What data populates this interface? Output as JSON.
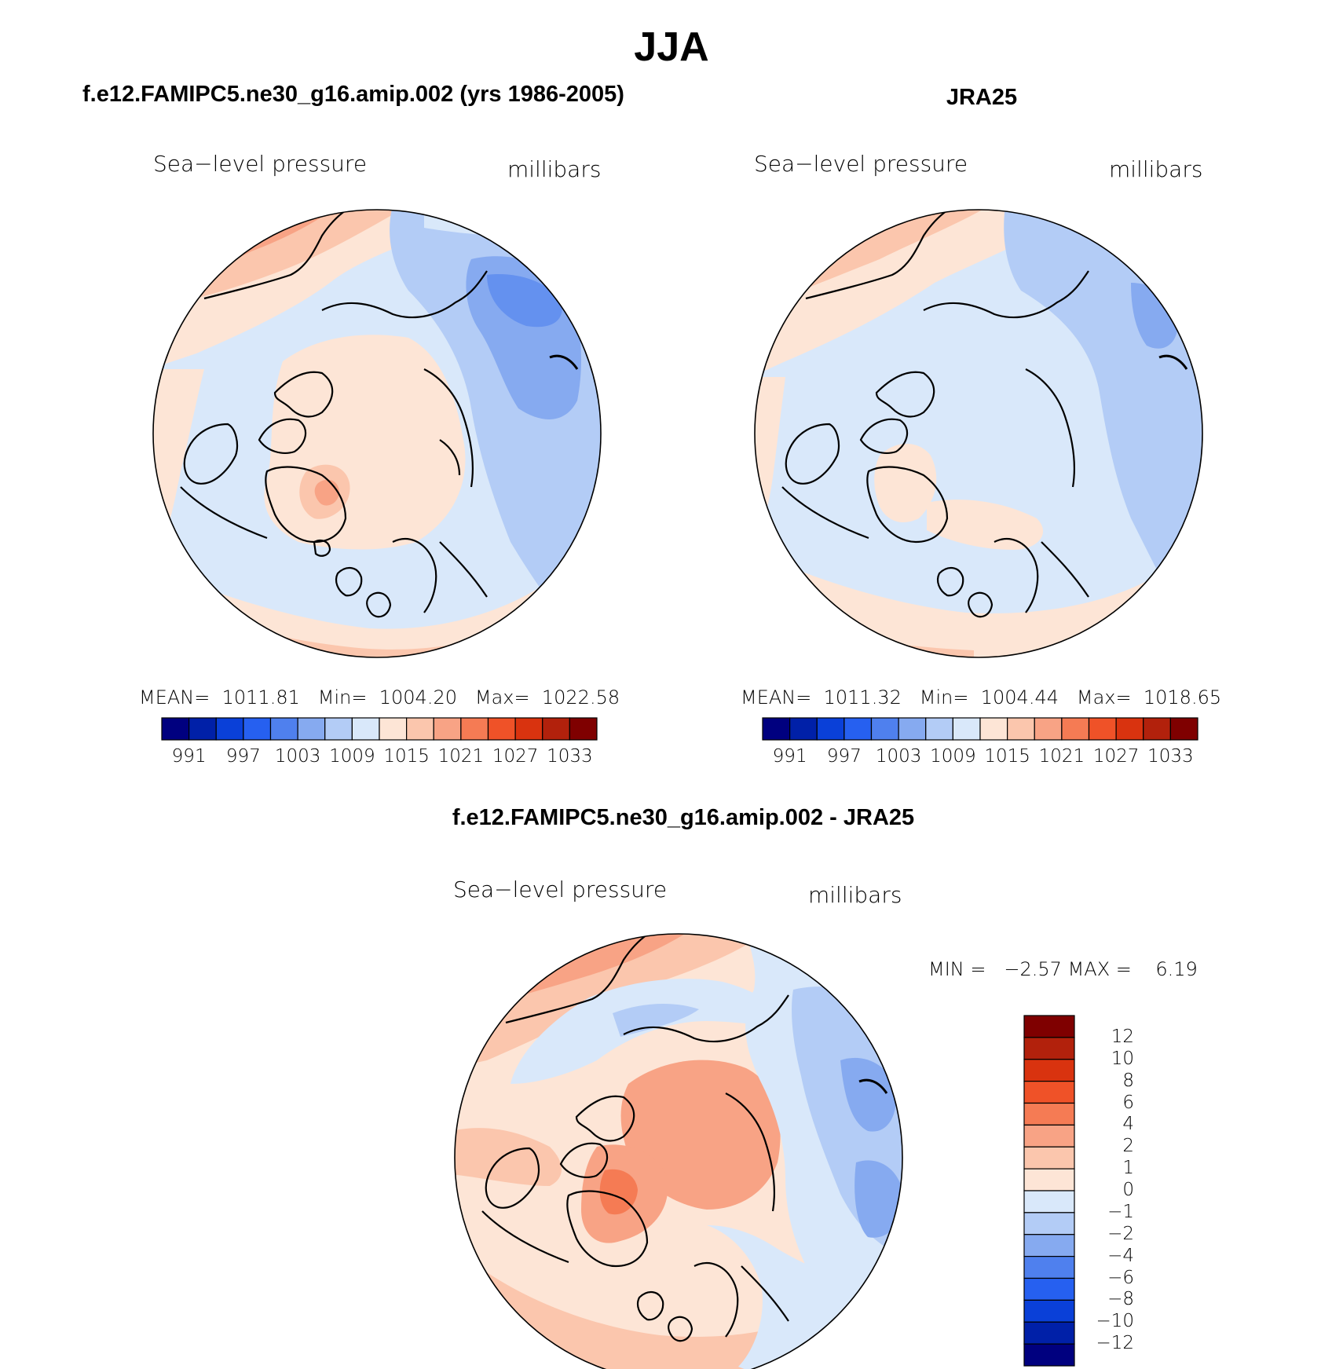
{
  "figure": {
    "title": "JJA"
  },
  "panels": [
    {
      "title": "f.e12.FAMIPC5.ne30_g16.amip.002 (yrs 1986-2005)",
      "variable_label": "Sea−level pressure",
      "units_label": "millibars",
      "stats": {
        "mean_label": "MEAN=",
        "mean": "1011.81",
        "min_label": "Min=",
        "min": "1004.20",
        "max_label": "Max=",
        "max": "1022.58"
      }
    },
    {
      "title": "JRA25",
      "variable_label": "Sea−level pressure",
      "units_label": "millibars",
      "stats": {
        "mean_label": "MEAN=",
        "mean": "1011.32",
        "min_label": "Min=",
        "min": "1004.44",
        "max_label": "Max=",
        "max": "1018.65"
      }
    },
    {
      "title": "f.e12.FAMIPC5.ne30_g16.amip.002 - JRA25",
      "variable_label": "Sea−level pressure",
      "units_label": "millibars",
      "stats": {
        "min_label": "MIN =",
        "min": "−2.57",
        "max_label": "MAX =",
        "max": "6.19"
      }
    }
  ],
  "colorbar_abs": {
    "ticks": [
      "991",
      "997",
      "1003",
      "1009",
      "1015",
      "1021",
      "1027",
      "1033"
    ],
    "colors": [
      "#00007f",
      "#0020a8",
      "#0a40d8",
      "#2660f0",
      "#4f80ee",
      "#86aaf0",
      "#b3ccf6",
      "#d9e8fa",
      "#fde5d6",
      "#fbc6ad",
      "#f8a385",
      "#f57b54",
      "#ef5228",
      "#d9330f",
      "#b2210c",
      "#7f0000"
    ]
  },
  "colorbar_diff": {
    "ticks": [
      "12",
      "10",
      "8",
      "6",
      "4",
      "2",
      "1",
      "0",
      "−1",
      "−2",
      "−4",
      "−6",
      "−8",
      "−10",
      "−12"
    ],
    "colors": [
      "#7f0000",
      "#b2210c",
      "#d9330f",
      "#ef5228",
      "#f57b54",
      "#f8a385",
      "#fbc6ad",
      "#fde5d6",
      "#d9e8fa",
      "#b3ccf6",
      "#86aaf0",
      "#4f80ee",
      "#2660f0",
      "#0a40d8",
      "#0020a8",
      "#00007f"
    ]
  }
}
